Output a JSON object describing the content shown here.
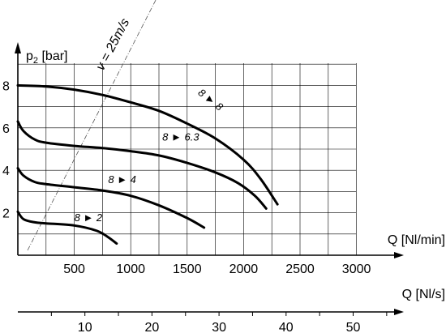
{
  "chart_data": {
    "type": "line",
    "ylabel_main": "p",
    "ylabel_sub": "2",
    "ylabel_unit": " [bar]",
    "xlabel": "Q [Nl/min]",
    "x2label": "Q [Nl/s]",
    "xlim": [
      0,
      3000
    ],
    "ylim": [
      0,
      9
    ],
    "x2lim": [
      0,
      55
    ],
    "x_ticks": [
      500,
      1000,
      1500,
      2000,
      2500,
      3000
    ],
    "y_ticks": [
      2,
      4,
      6,
      8
    ],
    "x2_ticks": [
      10,
      20,
      30,
      40,
      50
    ],
    "grid": true,
    "series": [
      {
        "name": "8 ► 8",
        "label_x": 1590,
        "label_y": 7.6,
        "label_rot": 38,
        "x": [
          0,
          250,
          500,
          750,
          1000,
          1250,
          1500,
          1750,
          2000,
          2150,
          2300
        ],
        "y": [
          8.0,
          7.95,
          7.8,
          7.55,
          7.2,
          6.8,
          6.2,
          5.5,
          4.5,
          3.6,
          2.4
        ]
      },
      {
        "name": "8 ► 6.3",
        "label_x": 1280,
        "label_y": 5.4,
        "label_rot": 0,
        "x": [
          0,
          50,
          150,
          250,
          500,
          750,
          1000,
          1250,
          1500,
          1750,
          1950,
          2100,
          2200
        ],
        "y": [
          6.3,
          5.85,
          5.45,
          5.3,
          5.15,
          5.05,
          4.9,
          4.7,
          4.35,
          3.9,
          3.4,
          2.8,
          2.2
        ]
      },
      {
        "name": "8 ► 4",
        "label_x": 800,
        "label_y": 3.4,
        "label_rot": 0,
        "x": [
          0,
          50,
          150,
          250,
          500,
          750,
          1000,
          1250,
          1500,
          1650
        ],
        "y": [
          4.1,
          3.75,
          3.45,
          3.35,
          3.2,
          3.05,
          2.8,
          2.35,
          1.75,
          1.3
        ]
      },
      {
        "name": "8 ► 2",
        "label_x": 500,
        "label_y": 1.6,
        "label_rot": 0,
        "x": [
          0,
          50,
          150,
          250,
          500,
          700,
          800,
          875
        ],
        "y": [
          2.05,
          1.7,
          1.55,
          1.5,
          1.4,
          1.15,
          0.85,
          0.55
        ]
      }
    ],
    "reference_line": {
      "label": "v = 25m/s",
      "x": [
        0,
        1150
      ],
      "y": [
        0,
        9.6
      ]
    }
  }
}
